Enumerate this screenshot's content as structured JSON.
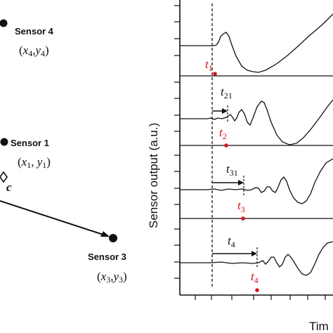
{
  "sensors": [
    {
      "name": "Sensor 4",
      "coord": "(x4,y4)"
    },
    {
      "name": "Sensor 1",
      "coord": "(x1, y1)"
    },
    {
      "name": "Sensor 3",
      "coord": "(x3,y3)"
    }
  ],
  "source_label": "c",
  "y_axis_title": "Sensor output (a.u.)",
  "x_axis_title_visible": "Tim",
  "arrival_labels": {
    "t1": "t1",
    "t2": "t2",
    "t3": "t3",
    "t4": "t4"
  },
  "delay_labels": {
    "t21": "t21",
    "t31": "t31",
    "t4": "t4"
  },
  "colors": {
    "ink": "#111111",
    "arrival_red": "#d41414"
  }
}
